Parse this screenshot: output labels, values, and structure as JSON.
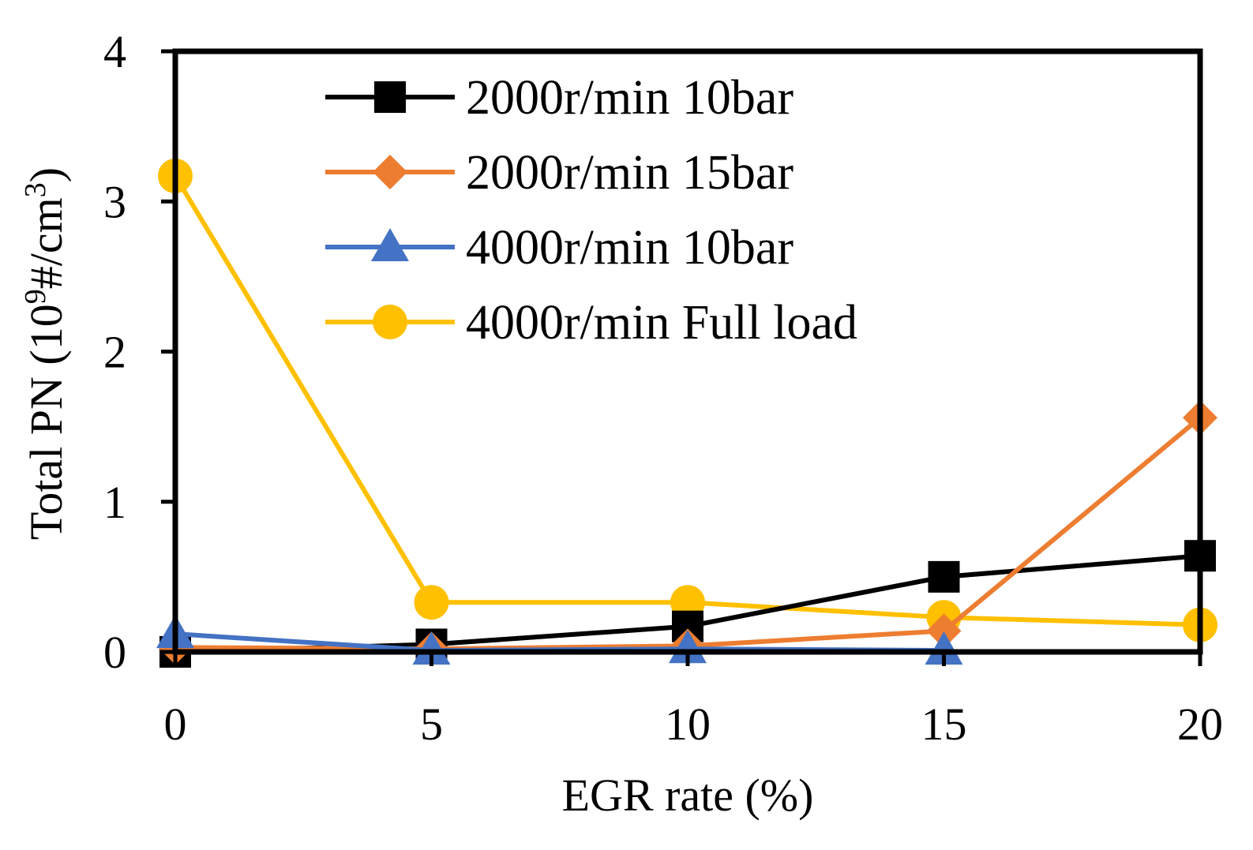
{
  "chart_data": {
    "type": "line",
    "title": "",
    "xlabel": "EGR rate (%)",
    "ylabel": "Total PN (10⁹#/cm³)",
    "ylabel_parts": {
      "prefix": "Total PN (10",
      "sup1": "9",
      "mid": "#/cm",
      "sup2": "3",
      "suffix": ")"
    },
    "x": [
      0,
      5,
      10,
      15,
      20
    ],
    "xlim": [
      0,
      20
    ],
    "ylim": [
      0,
      4
    ],
    "xticks": [
      0,
      5,
      10,
      15,
      20
    ],
    "yticks": [
      0,
      1,
      2,
      3,
      4
    ],
    "grid": false,
    "legend_position": "top-center",
    "series": [
      {
        "name": "2000r/min 10bar",
        "color": "#000000",
        "marker": "square",
        "x": [
          0,
          5,
          10,
          15,
          20
        ],
        "values": [
          0.0,
          0.05,
          0.17,
          0.5,
          0.64
        ]
      },
      {
        "name": "2000r/min 15bar",
        "color": "#ED7D31",
        "marker": "diamond",
        "x": [
          0,
          5,
          10,
          15,
          20
        ],
        "values": [
          0.03,
          0.02,
          0.04,
          0.14,
          1.56
        ]
      },
      {
        "name": "4000r/min 10bar",
        "color": "#4472C4",
        "marker": "triangle",
        "x": [
          0,
          5,
          10,
          15
        ],
        "values": [
          0.12,
          0.01,
          0.02,
          0.01
        ]
      },
      {
        "name": "4000r/min Full load",
        "color": "#FFC000",
        "marker": "circle",
        "x": [
          0,
          5,
          10,
          15,
          20
        ],
        "values": [
          3.17,
          0.33,
          0.33,
          0.23,
          0.18
        ]
      }
    ]
  }
}
